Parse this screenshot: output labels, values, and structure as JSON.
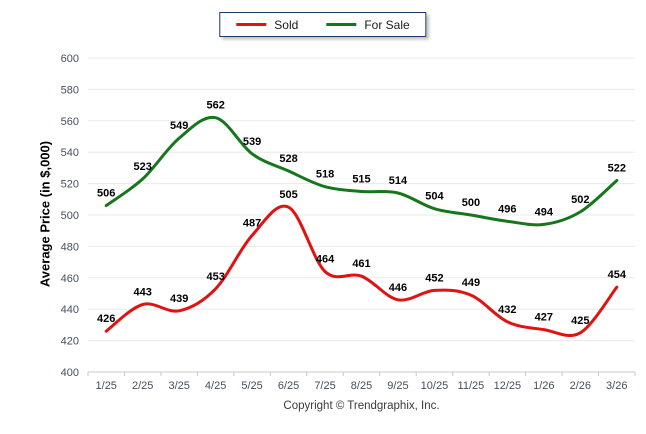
{
  "chart_data": {
    "type": "line",
    "title": "",
    "xlabel": "",
    "ylabel": "Average Price (in $,000)",
    "ylim": [
      400,
      600
    ],
    "ystep": 20,
    "grid": true,
    "legend_position": "top-center",
    "categories": [
      "1/25",
      "2/25",
      "3/25",
      "4/25",
      "5/25",
      "6/25",
      "7/25",
      "8/25",
      "9/25",
      "10/25",
      "11/25",
      "12/25",
      "1/26",
      "2/26",
      "3/26"
    ],
    "series": [
      {
        "name": "Sold",
        "color": "#e01212",
        "values": [
          426,
          443,
          439,
          453,
          487,
          505,
          464,
          461,
          446,
          452,
          449,
          432,
          427,
          425,
          454
        ]
      },
      {
        "name": "For Sale",
        "color": "#17761b",
        "values": [
          506,
          523,
          549,
          562,
          539,
          528,
          518,
          515,
          514,
          504,
          500,
          496,
          494,
          502,
          522
        ]
      }
    ]
  },
  "footer": {
    "copyright": "Copyright © Trendgraphix, Inc."
  },
  "colors": {
    "grid": "#e9e9e9",
    "axis": "#c8c8c8",
    "tick_label": "#454f5e",
    "data_label": "#000000",
    "legend_border": "#1f3864"
  }
}
